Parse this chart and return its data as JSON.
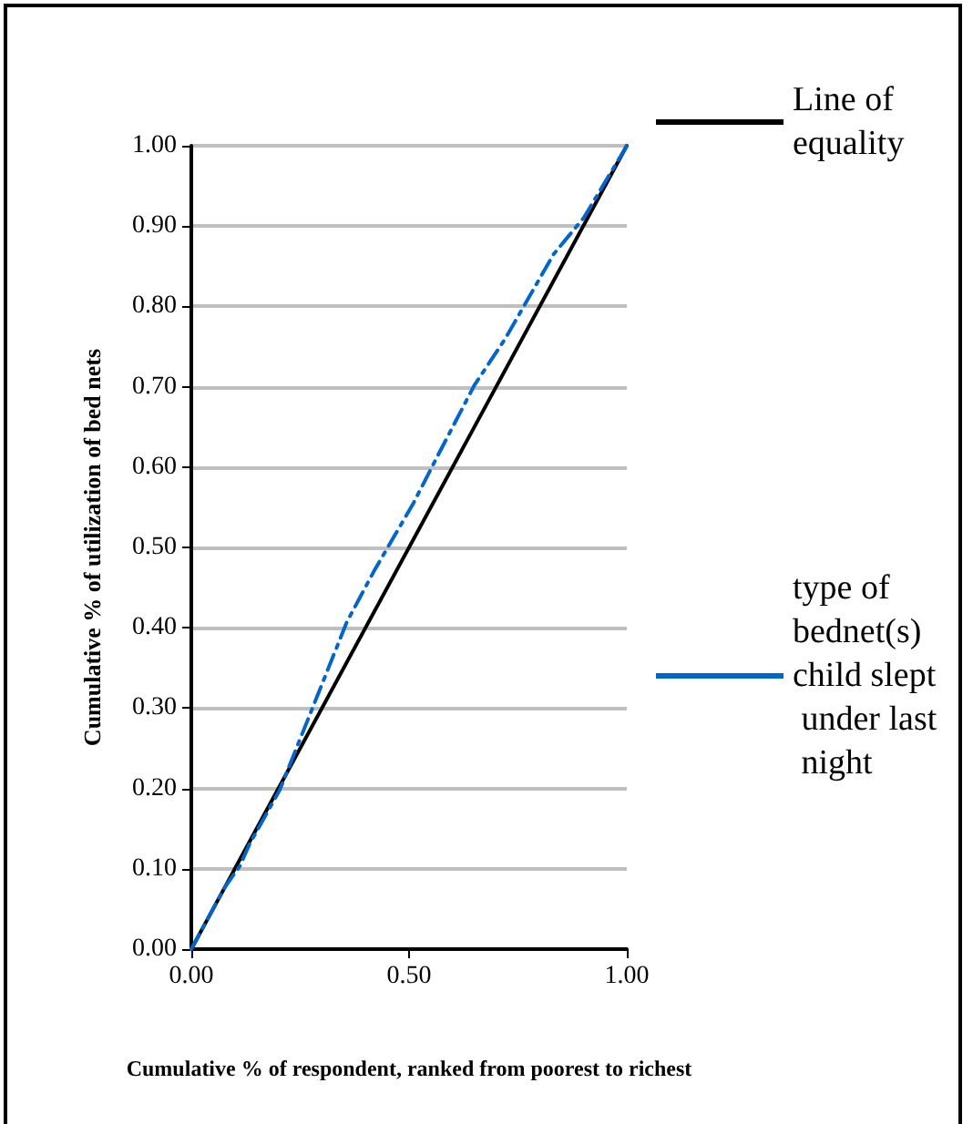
{
  "chart_data": {
    "type": "line",
    "xlabel": "Cumulative % of respondent, ranked from poorest to richest",
    "ylabel": "Cumulative % of utilization of bed nets",
    "xlim": [
      0,
      1
    ],
    "xticks": [
      {
        "value": 0,
        "label": "0.00"
      },
      {
        "value": 0.5,
        "label": "0.50"
      },
      {
        "value": 1,
        "label": "1.00"
      }
    ],
    "ylim": [
      0,
      1
    ],
    "yticks": [
      {
        "value": 0,
        "label": "0.00"
      },
      {
        "value": 0.1,
        "label": "0.10"
      },
      {
        "value": 0.2,
        "label": "0.20"
      },
      {
        "value": 0.3,
        "label": "0.30"
      },
      {
        "value": 0.4,
        "label": "0.40"
      },
      {
        "value": 0.5,
        "label": "0.50"
      },
      {
        "value": 0.6,
        "label": "0.60"
      },
      {
        "value": 0.7,
        "label": "0.70"
      },
      {
        "value": 0.8,
        "label": "0.80"
      },
      {
        "value": 0.9,
        "label": "0.90"
      },
      {
        "value": 1,
        "label": "1.00"
      }
    ],
    "grid": "y",
    "legend": "right",
    "marker": "none",
    "series": [
      {
        "name": "Line of equality",
        "color": "#000000",
        "line_style": "solid",
        "x": [
          0,
          1
        ],
        "values": [
          0,
          1
        ]
      },
      {
        "name": "type of bednet(s) child slept under last night",
        "color": "#0066cc",
        "line_style": "dashed",
        "x": [
          0,
          0.077,
          0.112,
          0.133,
          0.203,
          0.273,
          0.357,
          0.42,
          0.51,
          0.56,
          0.65,
          0.72,
          0.776,
          0.832,
          0.902,
          1
        ],
        "values": [
          0,
          0.077,
          0.104,
          0.13,
          0.198,
          0.293,
          0.407,
          0.471,
          0.555,
          0.608,
          0.702,
          0.759,
          0.812,
          0.865,
          0.911,
          1
        ]
      }
    ]
  }
}
